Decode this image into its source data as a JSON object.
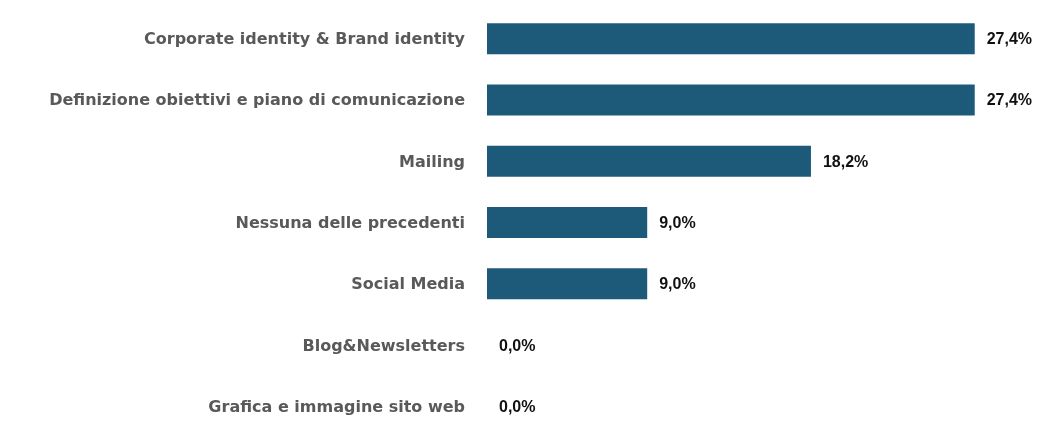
{
  "chart_data": {
    "type": "bar",
    "orientation": "horizontal",
    "categories": [
      "Corporate identity & Brand identity",
      "Definizione obiettivi e piano di comunicazione",
      "Mailing",
      "Nessuna delle precedenti",
      "Social Media",
      "Blog&Newsletters",
      "Grafica e immagine sito web"
    ],
    "values": [
      27.4,
      27.4,
      18.2,
      9.0,
      9.0,
      0,
      0
    ],
    "value_labels": [
      "27,4%",
      "27,4%",
      "18,2%",
      "9,0%",
      "9,0%",
      "0,0%",
      "0,0%"
    ],
    "color": "#1d5a7a"
  }
}
